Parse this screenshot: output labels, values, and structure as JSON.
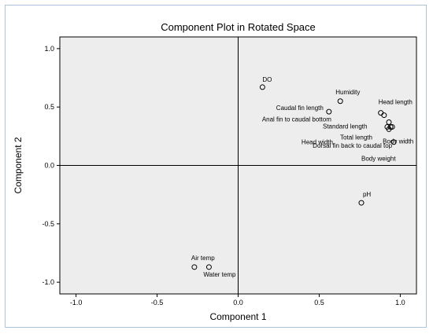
{
  "chart_data": {
    "type": "scatter",
    "title": "Component Plot in Rotated Space",
    "xlabel": "Component 1",
    "ylabel": "Component 2",
    "xlim": [
      -1.1,
      1.1
    ],
    "ylim": [
      -1.1,
      1.1
    ],
    "x_ticks": [
      "-1.0",
      "-0.5",
      "0.0",
      "0.5",
      "1.0"
    ],
    "y_ticks": [
      "1.0",
      "0.5",
      "0.0",
      "-0.5",
      "-1.0"
    ],
    "grid": false,
    "reference_lines": [
      0,
      0
    ],
    "background": "#ededed",
    "points": [
      {
        "label": "DO",
        "x": 0.15,
        "y": 0.67
      },
      {
        "label": "Humidity",
        "x": 0.63,
        "y": 0.55
      },
      {
        "label": "Head length",
        "x": 0.88,
        "y": 0.45
      },
      {
        "label": "Caudal fin length",
        "x": 0.56,
        "y": 0.46
      },
      {
        "label": "Anal fin to caudal bottom",
        "x": 0.9,
        "y": 0.43
      },
      {
        "label": "Standard length",
        "x": 0.93,
        "y": 0.37
      },
      {
        "label": "Total length",
        "x": 0.94,
        "y": 0.33
      },
      {
        "label": "Head width",
        "x": 0.92,
        "y": 0.33
      },
      {
        "label": "Body width",
        "x": 0.95,
        "y": 0.33
      },
      {
        "label": "Dorsal fin back to caudal top",
        "x": 0.96,
        "y": 0.2
      },
      {
        "label": "Body weight",
        "x": 0.93,
        "y": 0.31
      },
      {
        "label": "pH",
        "x": 0.76,
        "y": -0.32
      },
      {
        "label": "Air temp",
        "x": -0.27,
        "y": -0.87
      },
      {
        "label": "Water temp",
        "x": -0.18,
        "y": -0.87
      }
    ]
  }
}
